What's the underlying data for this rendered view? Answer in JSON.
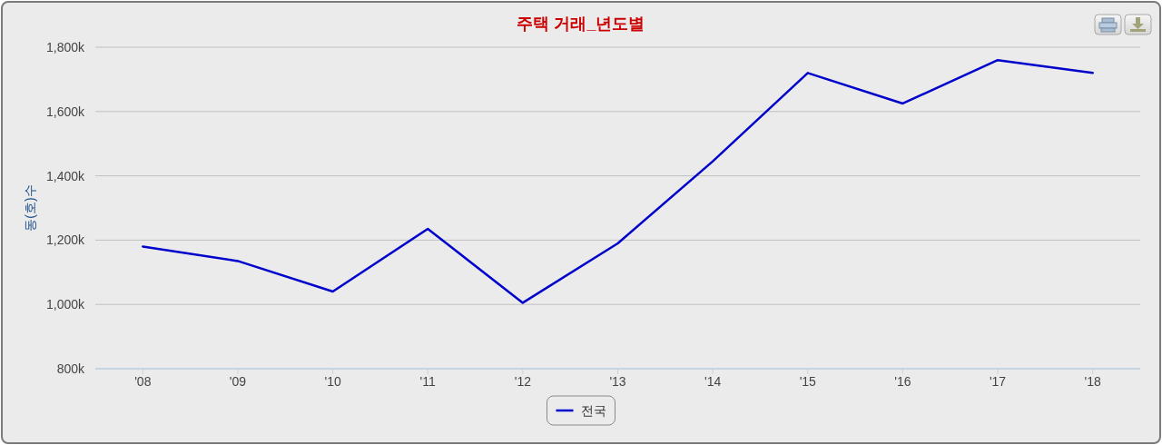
{
  "chart_data": {
    "type": "line",
    "title": "주택 거래_년도별",
    "ylabel": "동(호)수",
    "categories": [
      "'08",
      "'09",
      "'10",
      "'11",
      "'12",
      "'13",
      "'14",
      "'15",
      "'16",
      "'17",
      "'18"
    ],
    "series": [
      {
        "name": "전국",
        "color": "#0000cc",
        "values": [
          1180000,
          1135000,
          1040000,
          1235000,
          1005000,
          1190000,
          1445000,
          1720000,
          1625000,
          1760000,
          1720000
        ]
      }
    ],
    "ylim": [
      800000,
      1800000
    ],
    "yticks": [
      {
        "value": 800000,
        "label": "800k"
      },
      {
        "value": 1000000,
        "label": "1,000k"
      },
      {
        "value": 1200000,
        "label": "1,200k"
      },
      {
        "value": 1400000,
        "label": "1,400k"
      },
      {
        "value": 1600000,
        "label": "1,600k"
      },
      {
        "value": 1800000,
        "label": "1,800k"
      }
    ],
    "grid": "y",
    "legend": "bottom"
  }
}
